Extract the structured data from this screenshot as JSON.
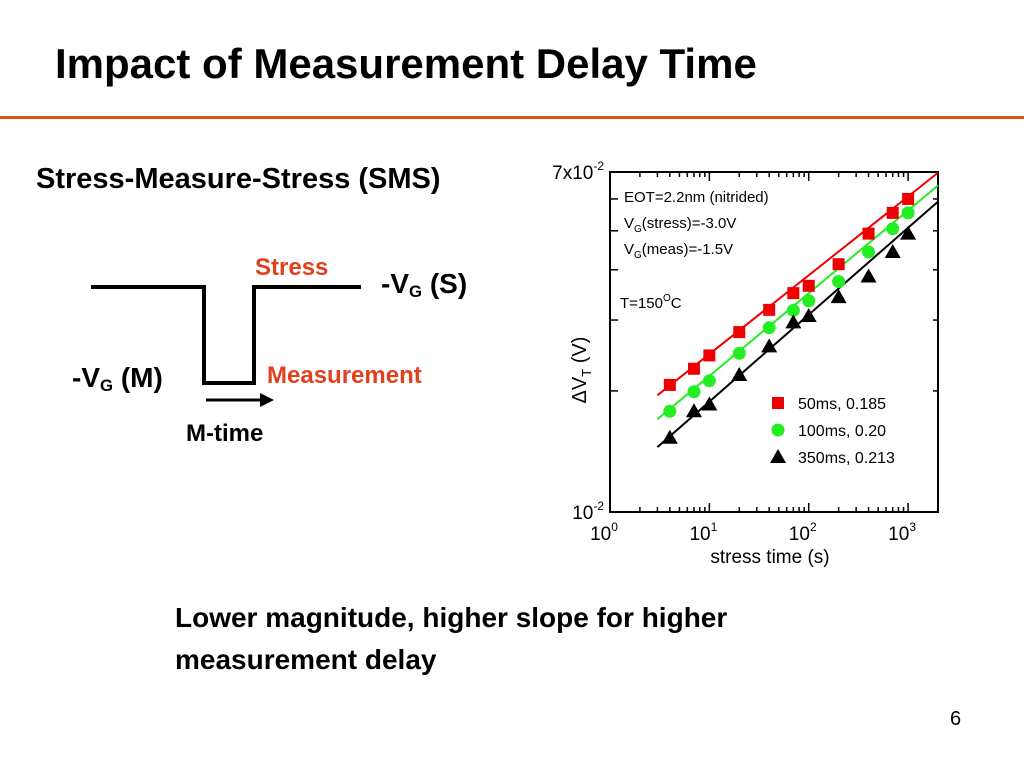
{
  "slide": {
    "title": "Impact of Measurement Delay Time",
    "subtitle": "Stress-Measure-Stress (SMS)",
    "page_number": "6",
    "conclusion_line1": "Lower magnitude, higher slope for higher",
    "conclusion_line2": "measurement delay",
    "accent_color": "#e0501e"
  },
  "waveform": {
    "stress_label": "Stress",
    "measurement_label": "Measurement",
    "vg_stress_prefix": "-V",
    "vg_stress_sub": "G",
    "vg_stress_suffix": " (S)",
    "vg_meas_prefix": "-V",
    "vg_meas_sub": "G",
    "vg_meas_suffix": " (M)",
    "mtime_label": "M-time"
  },
  "chart_data": {
    "type": "scatter",
    "xlabel": "stress time (s)",
    "ylabel_prefix": "ΔV",
    "ylabel_sub": "T",
    "ylabel_suffix": " (V)",
    "xscale": "log",
    "yscale": "log",
    "xlim": [
      1,
      2000
    ],
    "ylim": [
      0.01,
      0.07
    ],
    "x_ticks": [
      {
        "base": "10",
        "exp": "0",
        "value": 1
      },
      {
        "base": "10",
        "exp": "1",
        "value": 10
      },
      {
        "base": "10",
        "exp": "2",
        "value": 100
      },
      {
        "base": "10",
        "exp": "3",
        "value": 1000
      }
    ],
    "y_ticks": [
      {
        "base": "7x10",
        "exp": "-2",
        "value": 0.07
      },
      {
        "base": "10",
        "exp": "-2",
        "value": 0.01
      }
    ],
    "annotations": {
      "eot": "EOT=2.2nm (nitrided)",
      "vg_stress_prefix": "V",
      "vg_stress_sub": "G",
      "vg_stress_suffix": "(stress)=-3.0V",
      "vg_meas_prefix": "V",
      "vg_meas_sub": "G",
      "vg_meas_suffix": "(meas)=-1.5V",
      "temp_prefix": "T=150",
      "temp_sup": "O",
      "temp_suffix": "C"
    },
    "legend_position": "bottom-right",
    "series": [
      {
        "name": "50ms, 0.185",
        "marker": "square",
        "color": "#ee0000",
        "x": [
          4,
          7,
          10,
          20,
          40,
          70,
          100,
          200,
          400,
          700,
          1000
        ],
        "y": [
          0.0207,
          0.0227,
          0.0245,
          0.028,
          0.0318,
          0.035,
          0.0365,
          0.0413,
          0.0492,
          0.0554,
          0.06
        ]
      },
      {
        "name": "100ms, 0.20",
        "marker": "circle",
        "color": "#22ee22",
        "x": [
          4,
          7,
          10,
          20,
          40,
          70,
          100,
          200,
          400,
          700,
          1000
        ],
        "y": [
          0.0178,
          0.0199,
          0.0212,
          0.0248,
          0.0287,
          0.0317,
          0.0335,
          0.0374,
          0.0443,
          0.0506,
          0.0554
        ]
      },
      {
        "name": "350ms, 0.213",
        "marker": "triangle",
        "color": "#000000",
        "x": [
          4,
          7,
          10,
          20,
          40,
          70,
          100,
          200,
          400,
          700,
          1000
        ],
        "y": [
          0.0153,
          0.0178,
          0.0185,
          0.0219,
          0.0258,
          0.0296,
          0.0307,
          0.0342,
          0.0385,
          0.0443,
          0.0492
        ]
      }
    ],
    "fit_lines": [
      {
        "color": "#ee0000",
        "x": [
          3,
          2000
        ],
        "y": [
          0.0195,
          0.0697
        ]
      },
      {
        "color": "#22ee22",
        "x": [
          3,
          2000
        ],
        "y": [
          0.017,
          0.0648
        ]
      },
      {
        "color": "#000000",
        "x": [
          3,
          2000
        ],
        "y": [
          0.0145,
          0.0591
        ]
      }
    ]
  }
}
